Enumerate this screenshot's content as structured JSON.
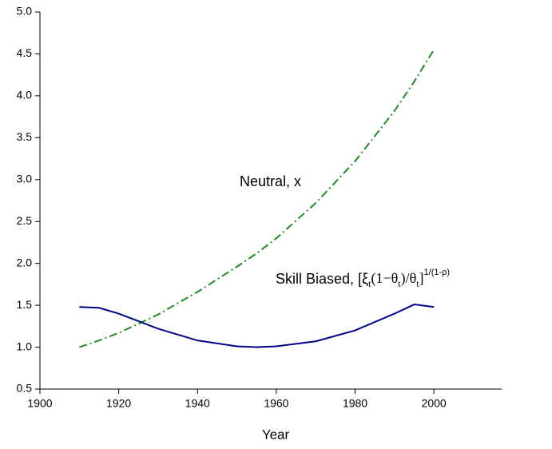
{
  "chart_data": {
    "type": "line",
    "x_label": "Year",
    "x": [
      1910,
      1915,
      1920,
      1930,
      1940,
      1950,
      1955,
      1960,
      1970,
      1980,
      1990,
      1995,
      2000
    ],
    "series": [
      {
        "name": "Neutral, x",
        "color": "#228b22",
        "dash": "dashdot",
        "values": [
          1.0,
          1.08,
          1.17,
          1.39,
          1.66,
          1.96,
          2.12,
          2.3,
          2.72,
          3.22,
          3.82,
          4.17,
          4.55
        ]
      },
      {
        "name": "Skill Biased",
        "color": "#00008b",
        "dash": "solid",
        "values": [
          1.48,
          1.47,
          1.4,
          1.22,
          1.08,
          1.01,
          1.0,
          1.01,
          1.07,
          1.2,
          1.4,
          1.51,
          1.48
        ]
      }
    ],
    "annotations": [
      {
        "text": "Neutral, x"
      },
      {
        "parts": [
          "Skill Biased, [ξ",
          "t",
          "(1−θ",
          "t",
          ")/θ",
          "t",
          "]",
          "1/(1-ρ)"
        ]
      }
    ],
    "xlim": [
      1900,
      2017
    ],
    "xticks": [
      1900,
      1920,
      1940,
      1960,
      1980,
      2000
    ],
    "ylim": [
      0.5,
      5.0
    ],
    "yticks": [
      {
        "value": 0.5,
        "label": "0.5"
      },
      {
        "value": 1.0,
        "label": "1.0"
      },
      {
        "value": 1.5,
        "label": "1.5"
      },
      {
        "value": 2.0,
        "label": "2.0"
      },
      {
        "value": 2.5,
        "label": "2.5"
      },
      {
        "value": 3.0,
        "label": "3.0"
      },
      {
        "value": 3.5,
        "label": "3.5"
      },
      {
        "value": 4.0,
        "label": "4.0"
      },
      {
        "value": 4.5,
        "label": "4.5"
      },
      {
        "value": 5.0,
        "label": "5.0"
      }
    ],
    "grid": false
  }
}
